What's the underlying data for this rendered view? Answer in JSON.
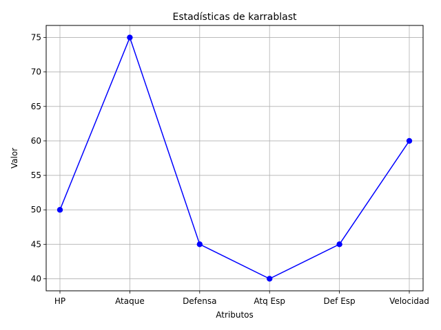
{
  "chart_data": {
    "type": "line",
    "title": "Estadísticas de karrablast",
    "xlabel": "Atributos",
    "ylabel": "Valor",
    "categories": [
      "HP",
      "Ataque",
      "Defensa",
      "Atq Esp",
      "Def Esp",
      "Velocidad"
    ],
    "series": [
      {
        "values": [
          50,
          75,
          45,
          40,
          45,
          60
        ],
        "color": "#0000ff",
        "marker": "circle"
      }
    ],
    "yticks": [
      40,
      45,
      50,
      55,
      60,
      65,
      70,
      75
    ],
    "ylim": [
      38.25,
      76.75
    ],
    "grid": true,
    "legend": "none"
  }
}
